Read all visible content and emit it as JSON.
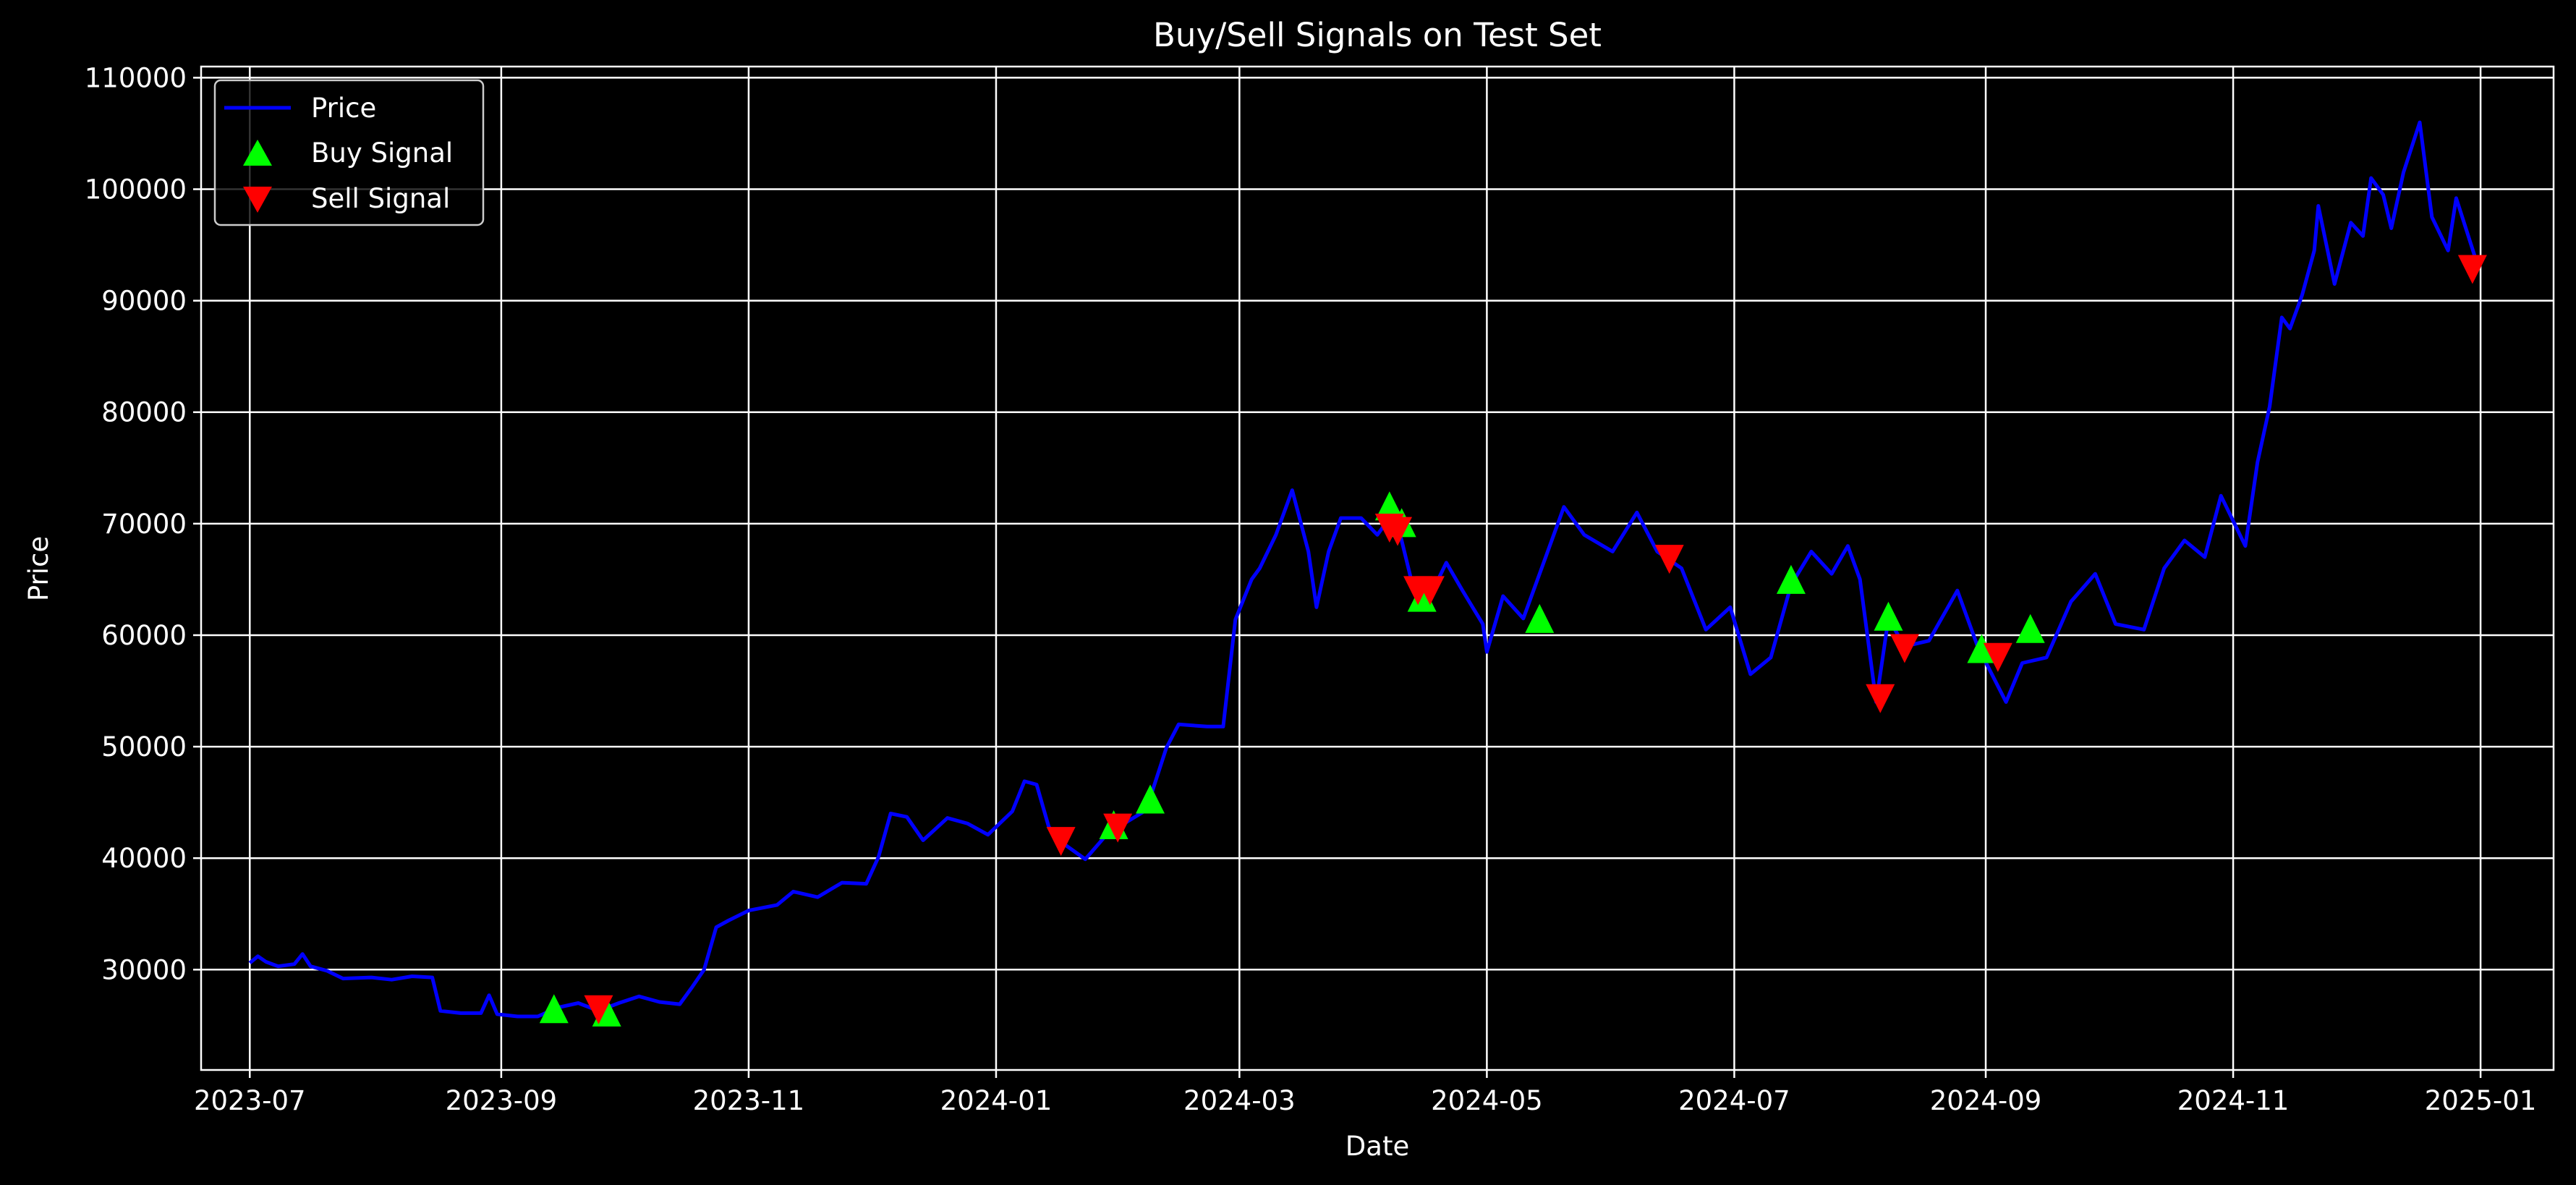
{
  "chart_data": {
    "type": "line",
    "title": "Buy/Sell Signals on Test Set",
    "xlabel": "Date",
    "ylabel": "Price",
    "xlim": [
      "2023-06-19",
      "2025-01-19"
    ],
    "ylim": [
      21000,
      111000
    ],
    "x_ticks": [
      "2023-07",
      "2023-09",
      "2023-11",
      "2024-01",
      "2024-03",
      "2024-05",
      "2024-07",
      "2024-09",
      "2024-11",
      "2025-01"
    ],
    "y_ticks": [
      30000,
      40000,
      50000,
      60000,
      70000,
      80000,
      90000,
      100000,
      110000
    ],
    "grid": true,
    "legend_position": "top-left",
    "background": "#000000",
    "series": [
      {
        "name": "Price",
        "kind": "line",
        "color": "#0000ff",
        "points": [
          [
            "2023-07-01",
            30600
          ],
          [
            "2023-07-03",
            31200
          ],
          [
            "2023-07-05",
            30700
          ],
          [
            "2023-07-08",
            30300
          ],
          [
            "2023-07-12",
            30500
          ],
          [
            "2023-07-14",
            31400
          ],
          [
            "2023-07-16",
            30300
          ],
          [
            "2023-07-20",
            29900
          ],
          [
            "2023-07-24",
            29200
          ],
          [
            "2023-07-31",
            29300
          ],
          [
            "2023-08-05",
            29100
          ],
          [
            "2023-08-10",
            29400
          ],
          [
            "2023-08-15",
            29300
          ],
          [
            "2023-08-17",
            26300
          ],
          [
            "2023-08-22",
            26100
          ],
          [
            "2023-08-27",
            26100
          ],
          [
            "2023-08-29",
            27700
          ],
          [
            "2023-08-31",
            26000
          ],
          [
            "2023-09-05",
            25800
          ],
          [
            "2023-09-10",
            25800
          ],
          [
            "2023-09-15",
            26600
          ],
          [
            "2023-09-20",
            27000
          ],
          [
            "2023-09-25",
            26300
          ],
          [
            "2023-09-30",
            27000
          ],
          [
            "2023-10-05",
            27600
          ],
          [
            "2023-10-10",
            27100
          ],
          [
            "2023-10-15",
            26900
          ],
          [
            "2023-10-18",
            28400
          ],
          [
            "2023-10-21",
            30000
          ],
          [
            "2023-10-24",
            33800
          ],
          [
            "2023-10-27",
            34400
          ],
          [
            "2023-11-01",
            35300
          ],
          [
            "2023-11-08",
            35800
          ],
          [
            "2023-11-12",
            37000
          ],
          [
            "2023-11-18",
            36500
          ],
          [
            "2023-11-24",
            37800
          ],
          [
            "2023-11-30",
            37700
          ],
          [
            "2023-12-03",
            40100
          ],
          [
            "2023-12-06",
            44000
          ],
          [
            "2023-12-10",
            43700
          ],
          [
            "2023-12-14",
            41600
          ],
          [
            "2023-12-20",
            43600
          ],
          [
            "2023-12-25",
            43100
          ],
          [
            "2023-12-30",
            42100
          ],
          [
            "2024-01-05",
            44200
          ],
          [
            "2024-01-08",
            46900
          ],
          [
            "2024-01-11",
            46600
          ],
          [
            "2024-01-14",
            42800
          ],
          [
            "2024-01-18",
            41200
          ],
          [
            "2024-01-23",
            39900
          ],
          [
            "2024-01-28",
            42000
          ],
          [
            "2024-02-02",
            43200
          ],
          [
            "2024-02-07",
            44300
          ],
          [
            "2024-02-12",
            49900
          ],
          [
            "2024-02-15",
            52000
          ],
          [
            "2024-02-22",
            51800
          ],
          [
            "2024-02-26",
            51800
          ],
          [
            "2024-02-29",
            61400
          ],
          [
            "2024-03-04",
            65000
          ],
          [
            "2024-03-06",
            66000
          ],
          [
            "2024-03-10",
            69000
          ],
          [
            "2024-03-14",
            73000
          ],
          [
            "2024-03-18",
            67500
          ],
          [
            "2024-03-20",
            62500
          ],
          [
            "2024-03-23",
            67500
          ],
          [
            "2024-03-26",
            70500
          ],
          [
            "2024-03-31",
            70500
          ],
          [
            "2024-04-04",
            69000
          ],
          [
            "2024-04-08",
            71000
          ],
          [
            "2024-04-10",
            68500
          ],
          [
            "2024-04-13",
            64000
          ],
          [
            "2024-04-17",
            63500
          ],
          [
            "2024-04-21",
            66500
          ],
          [
            "2024-04-25",
            64000
          ],
          [
            "2024-04-30",
            61000
          ],
          [
            "2024-05-01",
            58500
          ],
          [
            "2024-05-05",
            63500
          ],
          [
            "2024-05-10",
            61500
          ],
          [
            "2024-05-15",
            66500
          ],
          [
            "2024-05-20",
            71500
          ],
          [
            "2024-05-25",
            69000
          ],
          [
            "2024-06-01",
            67500
          ],
          [
            "2024-06-07",
            71000
          ],
          [
            "2024-06-12",
            67500
          ],
          [
            "2024-06-18",
            66000
          ],
          [
            "2024-06-24",
            60500
          ],
          [
            "2024-06-30",
            62500
          ],
          [
            "2024-07-05",
            56500
          ],
          [
            "2024-07-10",
            58000
          ],
          [
            "2024-07-15",
            64500
          ],
          [
            "2024-07-20",
            67500
          ],
          [
            "2024-07-25",
            65500
          ],
          [
            "2024-07-29",
            68000
          ],
          [
            "2024-08-01",
            65000
          ],
          [
            "2024-08-05",
            54000
          ],
          [
            "2024-08-08",
            61500
          ],
          [
            "2024-08-12",
            59000
          ],
          [
            "2024-08-18",
            59500
          ],
          [
            "2024-08-25",
            64000
          ],
          [
            "2024-08-30",
            59000
          ],
          [
            "2024-09-06",
            54000
          ],
          [
            "2024-09-10",
            57500
          ],
          [
            "2024-09-16",
            58000
          ],
          [
            "2024-09-22",
            63000
          ],
          [
            "2024-09-28",
            65500
          ],
          [
            "2024-10-03",
            61000
          ],
          [
            "2024-10-10",
            60500
          ],
          [
            "2024-10-15",
            66000
          ],
          [
            "2024-10-20",
            68500
          ],
          [
            "2024-10-25",
            67000
          ],
          [
            "2024-10-29",
            72500
          ],
          [
            "2024-11-04",
            68000
          ],
          [
            "2024-11-07",
            75500
          ],
          [
            "2024-11-10",
            80500
          ],
          [
            "2024-11-13",
            88500
          ],
          [
            "2024-11-15",
            87500
          ],
          [
            "2024-11-18",
            90500
          ],
          [
            "2024-11-21",
            94500
          ],
          [
            "2024-11-22",
            98500
          ],
          [
            "2024-11-26",
            91500
          ],
          [
            "2024-11-30",
            97000
          ],
          [
            "2024-12-03",
            95800
          ],
          [
            "2024-12-05",
            101000
          ],
          [
            "2024-12-08",
            99500
          ],
          [
            "2024-12-10",
            96500
          ],
          [
            "2024-12-13",
            101500
          ],
          [
            "2024-12-17",
            106000
          ],
          [
            "2024-12-20",
            97500
          ],
          [
            "2024-12-24",
            94500
          ],
          [
            "2024-12-26",
            99200
          ],
          [
            "2024-12-31",
            93500
          ]
        ]
      },
      {
        "name": "Buy Signal",
        "kind": "scatter",
        "marker": "triangle-up",
        "color": "#00ff00",
        "points": [
          [
            "2023-09-14",
            26500
          ],
          [
            "2023-09-27",
            26200
          ],
          [
            "2024-01-30",
            43000
          ],
          [
            "2024-02-08",
            45300
          ],
          [
            "2024-04-07",
            71600
          ],
          [
            "2024-04-10",
            70100
          ],
          [
            "2024-04-15",
            63400
          ],
          [
            "2024-05-14",
            61500
          ],
          [
            "2024-07-15",
            65000
          ],
          [
            "2024-08-08",
            61700
          ],
          [
            "2024-08-31",
            58800
          ],
          [
            "2024-09-12",
            60600
          ]
        ]
      },
      {
        "name": "Sell Signal",
        "kind": "scatter",
        "marker": "triangle-down",
        "color": "#ff0000",
        "points": [
          [
            "2023-09-25",
            26400
          ],
          [
            "2024-01-17",
            41500
          ],
          [
            "2024-01-31",
            42700
          ],
          [
            "2024-04-07",
            69600
          ],
          [
            "2024-04-09",
            69300
          ],
          [
            "2024-04-14",
            64000
          ],
          [
            "2024-04-17",
            64000
          ],
          [
            "2024-06-15",
            66800
          ],
          [
            "2024-08-06",
            54300
          ],
          [
            "2024-08-12",
            58800
          ],
          [
            "2024-09-04",
            58000
          ],
          [
            "2024-12-30",
            92800
          ]
        ]
      }
    ]
  }
}
